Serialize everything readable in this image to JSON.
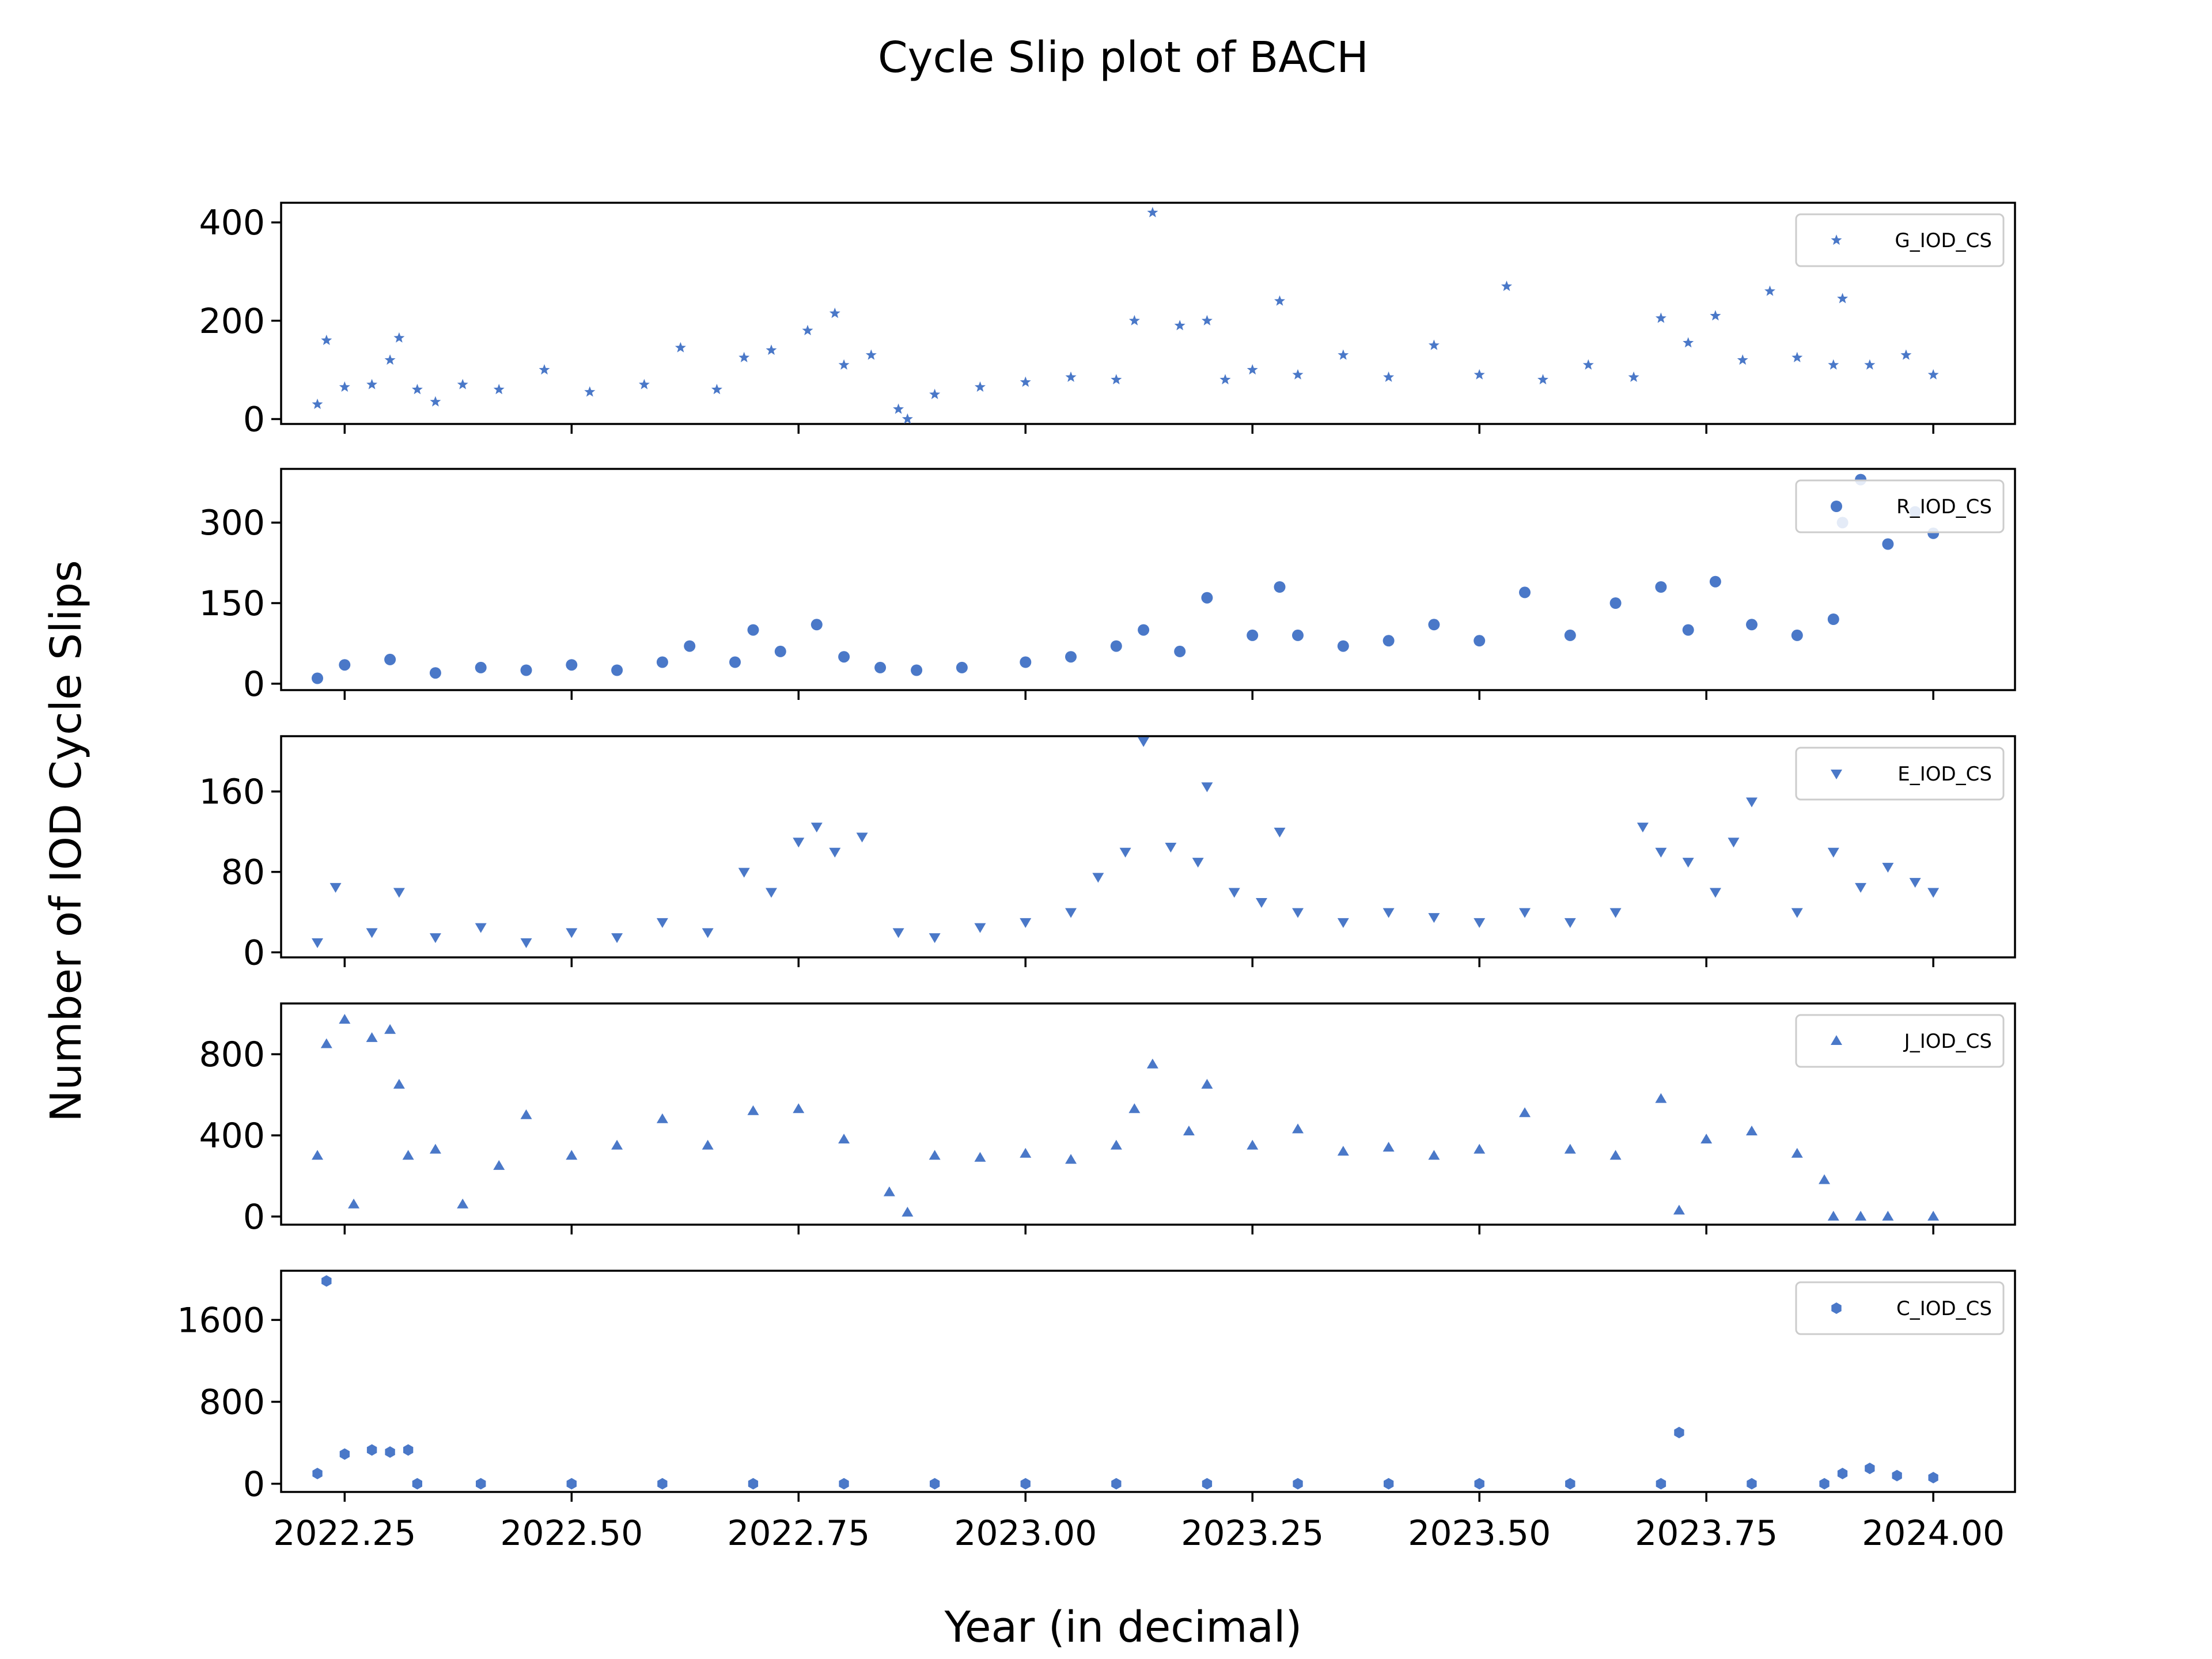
{
  "chart_data": {
    "type": "scatter",
    "title": "Cycle Slip plot of BACH",
    "xlabel": "Year (in decimal)",
    "ylabel": "Number of IOD Cycle Slips",
    "xlim": [
      2022.18,
      2024.09
    ],
    "x_ticks": [
      2022.25,
      2022.5,
      2022.75,
      2023.0,
      2023.25,
      2023.5,
      2023.75,
      2024.0
    ],
    "x_tick_labels": [
      "2022.25",
      "2022.50",
      "2022.75",
      "2023.00",
      "2023.25",
      "2023.50",
      "2023.75",
      "2024.00"
    ],
    "color": "#4a78c8",
    "legend_position": "upper-right",
    "grid": false,
    "panels": [
      {
        "name": "G_IOD_CS",
        "marker": "star",
        "ylim": [
          -10,
          440
        ],
        "y_ticks": [
          0,
          200,
          400
        ],
        "x": [
          2022.22,
          2022.23,
          2022.25,
          2022.28,
          2022.3,
          2022.31,
          2022.33,
          2022.35,
          2022.38,
          2022.42,
          2022.47,
          2022.52,
          2022.58,
          2022.62,
          2022.66,
          2022.69,
          2022.72,
          2022.76,
          2022.79,
          2022.8,
          2022.83,
          2022.86,
          2022.87,
          2022.9,
          2022.95,
          2023.0,
          2023.05,
          2023.1,
          2023.12,
          2023.14,
          2023.17,
          2023.2,
          2023.22,
          2023.25,
          2023.28,
          2023.3,
          2023.35,
          2023.4,
          2023.45,
          2023.5,
          2023.53,
          2023.57,
          2023.62,
          2023.67,
          2023.7,
          2023.73,
          2023.76,
          2023.79,
          2023.82,
          2023.85,
          2023.89,
          2023.9,
          2023.93,
          2023.97,
          2024.0
        ],
        "values": [
          30,
          160,
          65,
          70,
          120,
          165,
          60,
          35,
          70,
          60,
          100,
          55,
          70,
          145,
          60,
          125,
          140,
          180,
          215,
          110,
          130,
          20,
          0,
          50,
          65,
          75,
          85,
          80,
          200,
          420,
          190,
          200,
          80,
          100,
          240,
          90,
          130,
          85,
          150,
          90,
          270,
          80,
          110,
          85,
          205,
          155,
          210,
          120,
          260,
          125,
          110,
          245,
          110,
          130,
          90
        ]
      },
      {
        "name": "R_IOD_CS",
        "marker": "circle",
        "ylim": [
          -12,
          400
        ],
        "y_ticks": [
          0,
          150,
          300
        ],
        "x": [
          2022.22,
          2022.25,
          2022.3,
          2022.35,
          2022.4,
          2022.45,
          2022.5,
          2022.55,
          2022.6,
          2022.63,
          2022.68,
          2022.7,
          2022.73,
          2022.77,
          2022.8,
          2022.84,
          2022.88,
          2022.93,
          2023.0,
          2023.05,
          2023.1,
          2023.13,
          2023.17,
          2023.2,
          2023.25,
          2023.28,
          2023.3,
          2023.35,
          2023.4,
          2023.45,
          2023.5,
          2023.55,
          2023.6,
          2023.65,
          2023.7,
          2023.73,
          2023.76,
          2023.8,
          2023.85,
          2023.89,
          2023.9,
          2023.92,
          2023.95,
          2023.98,
          2024.0
        ],
        "values": [
          10,
          35,
          45,
          20,
          30,
          25,
          35,
          25,
          40,
          70,
          40,
          100,
          60,
          110,
          50,
          30,
          25,
          30,
          40,
          50,
          70,
          100,
          60,
          160,
          90,
          180,
          90,
          70,
          80,
          110,
          80,
          170,
          90,
          150,
          180,
          100,
          190,
          110,
          90,
          120,
          300,
          380,
          260,
          320,
          280
        ]
      },
      {
        "name": "E_IOD_CS",
        "marker": "triangle-down",
        "ylim": [
          -5,
          215
        ],
        "y_ticks": [
          0,
          80,
          160
        ],
        "x": [
          2022.22,
          2022.24,
          2022.28,
          2022.31,
          2022.35,
          2022.4,
          2022.45,
          2022.5,
          2022.55,
          2022.6,
          2022.65,
          2022.69,
          2022.72,
          2022.75,
          2022.77,
          2022.79,
          2022.82,
          2022.86,
          2022.9,
          2022.95,
          2023.0,
          2023.05,
          2023.08,
          2023.11,
          2023.13,
          2023.16,
          2023.19,
          2023.2,
          2023.23,
          2023.26,
          2023.28,
          2023.3,
          2023.35,
          2023.4,
          2023.45,
          2023.5,
          2023.55,
          2023.6,
          2023.65,
          2023.68,
          2023.7,
          2023.73,
          2023.76,
          2023.78,
          2023.8,
          2023.85,
          2023.89,
          2023.92,
          2023.95,
          2023.98,
          2024.0
        ],
        "values": [
          10,
          65,
          20,
          60,
          15,
          25,
          10,
          20,
          15,
          30,
          20,
          80,
          60,
          110,
          125,
          100,
          115,
          20,
          15,
          25,
          30,
          40,
          75,
          100,
          210,
          105,
          90,
          165,
          60,
          50,
          120,
          40,
          30,
          40,
          35,
          30,
          40,
          30,
          40,
          125,
          100,
          90,
          60,
          110,
          150,
          40,
          100,
          65,
          85,
          70,
          60
        ]
      },
      {
        "name": "J_IOD_CS",
        "marker": "triangle-up",
        "ylim": [
          -40,
          1050
        ],
        "y_ticks": [
          0,
          400,
          800
        ],
        "x": [
          2022.22,
          2022.23,
          2022.25,
          2022.26,
          2022.28,
          2022.3,
          2022.31,
          2022.32,
          2022.35,
          2022.38,
          2022.42,
          2022.45,
          2022.5,
          2022.55,
          2022.6,
          2022.65,
          2022.7,
          2022.75,
          2022.8,
          2022.85,
          2022.87,
          2022.9,
          2022.95,
          2023.0,
          2023.05,
          2023.1,
          2023.12,
          2023.14,
          2023.18,
          2023.2,
          2023.25,
          2023.3,
          2023.35,
          2023.4,
          2023.45,
          2023.5,
          2023.55,
          2023.6,
          2023.65,
          2023.7,
          2023.72,
          2023.75,
          2023.8,
          2023.85,
          2023.88,
          2023.89,
          2023.92,
          2023.95,
          2024.0
        ],
        "values": [
          300,
          850,
          970,
          60,
          880,
          920,
          650,
          300,
          330,
          60,
          250,
          500,
          300,
          350,
          480,
          350,
          520,
          530,
          380,
          120,
          20,
          300,
          290,
          310,
          280,
          350,
          530,
          750,
          420,
          650,
          350,
          430,
          320,
          340,
          300,
          330,
          510,
          330,
          300,
          580,
          30,
          380,
          420,
          310,
          180,
          0,
          0,
          0,
          0
        ]
      },
      {
        "name": "C_IOD_CS",
        "marker": "hexagon",
        "ylim": [
          -80,
          2080
        ],
        "y_ticks": [
          0,
          800,
          1600
        ],
        "x": [
          2022.22,
          2022.23,
          2022.25,
          2022.28,
          2022.3,
          2022.32,
          2022.33,
          2022.4,
          2022.5,
          2022.6,
          2022.7,
          2022.8,
          2022.9,
          2023.0,
          2023.1,
          2023.2,
          2023.3,
          2023.4,
          2023.5,
          2023.6,
          2023.7,
          2023.72,
          2023.8,
          2023.88,
          2023.9,
          2023.93,
          2023.96,
          2024.0
        ],
        "values": [
          100,
          1980,
          290,
          330,
          310,
          330,
          0,
          0,
          0,
          0,
          0,
          0,
          0,
          0,
          0,
          0,
          0,
          0,
          0,
          0,
          0,
          500,
          0,
          0,
          100,
          150,
          80,
          60
        ]
      }
    ]
  }
}
